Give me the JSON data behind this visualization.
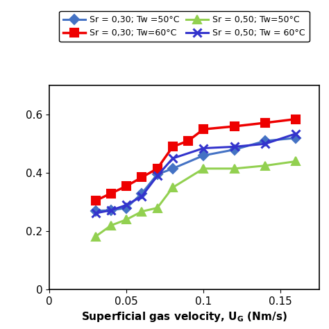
{
  "series": [
    {
      "label": "Sr = 0,30; Tw =50°C",
      "color": "#4472C4",
      "marker": "D",
      "markersize": 7,
      "linewidth": 2.2,
      "x": [
        0.03,
        0.04,
        0.05,
        0.06,
        0.07,
        0.08,
        0.1,
        0.12,
        0.14,
        0.16
      ],
      "y": [
        0.27,
        0.272,
        0.28,
        0.33,
        0.395,
        0.415,
        0.46,
        0.48,
        0.51,
        0.52
      ]
    },
    {
      "label": "Sr = 0,30; Tw=60°C",
      "color": "#EE0000",
      "marker": "s",
      "markersize": 9,
      "linewidth": 2.5,
      "x": [
        0.03,
        0.04,
        0.05,
        0.06,
        0.07,
        0.08,
        0.09,
        0.1,
        0.12,
        0.14,
        0.16
      ],
      "y": [
        0.305,
        0.33,
        0.355,
        0.385,
        0.415,
        0.49,
        0.51,
        0.55,
        0.56,
        0.572,
        0.585
      ]
    },
    {
      "label": "Sr = 0,50; Tw=50°C",
      "color": "#92D050",
      "marker": "^",
      "markersize": 9,
      "linewidth": 2.2,
      "x": [
        0.03,
        0.04,
        0.05,
        0.06,
        0.07,
        0.08,
        0.1,
        0.12,
        0.14,
        0.16
      ],
      "y": [
        0.182,
        0.22,
        0.24,
        0.268,
        0.28,
        0.35,
        0.415,
        0.415,
        0.425,
        0.44
      ]
    },
    {
      "label": "Sr = 0,50; Tw = 60°C",
      "color": "#3333CC",
      "marker": "x",
      "markersize": 9,
      "linewidth": 2.2,
      "x": [
        0.03,
        0.04,
        0.05,
        0.06,
        0.07,
        0.08,
        0.1,
        0.12,
        0.14,
        0.16
      ],
      "y": [
        0.262,
        0.272,
        0.29,
        0.32,
        0.39,
        0.45,
        0.485,
        0.49,
        0.5,
        0.535
      ]
    }
  ],
  "xlim": [
    0,
    0.175
  ],
  "ylim": [
    0,
    0.7
  ],
  "xticks": [
    0,
    0.05,
    0.1,
    0.15
  ],
  "yticks": [
    0,
    0.2,
    0.4,
    0.6
  ],
  "xlabel": "Superficial gas velocity, U$_{G}$ (Nm/s)",
  "figsize": [
    4.74,
    4.74
  ],
  "dpi": 100
}
